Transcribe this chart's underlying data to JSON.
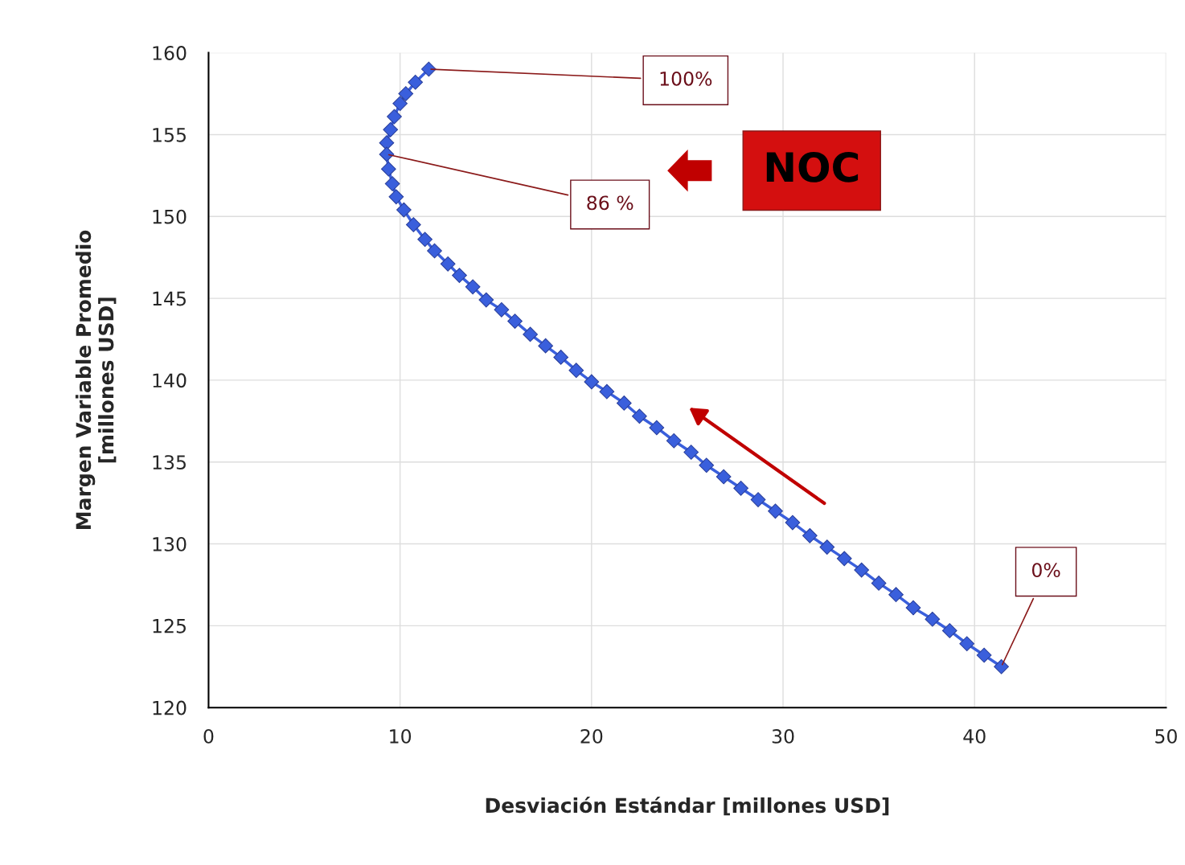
{
  "chart_data": {
    "type": "line",
    "xlabel": "Desviación Estándar [millones USD]",
    "ylabel": "Margen Variable Promedio\n[millones USD]",
    "x": [
      11.5,
      10.8,
      10.3,
      10.0,
      9.7,
      9.5,
      9.3,
      9.3,
      9.4,
      9.6,
      9.8,
      10.2,
      10.7,
      11.3,
      11.8,
      12.5,
      13.1,
      13.8,
      14.5,
      15.3,
      16.0,
      16.8,
      17.6,
      18.4,
      19.2,
      20.0,
      20.8,
      21.7,
      22.5,
      23.4,
      24.3,
      25.2,
      26.0,
      26.9,
      27.8,
      28.7,
      29.6,
      30.5,
      31.4,
      32.3,
      33.2,
      34.1,
      35.0,
      35.9,
      36.8,
      37.8,
      38.7,
      39.6,
      40.5,
      41.4
    ],
    "series": [
      {
        "color": "#3a5fdc",
        "values": [
          159.0,
          158.2,
          157.5,
          156.9,
          156.1,
          155.3,
          154.5,
          153.8,
          152.9,
          152.0,
          151.2,
          150.4,
          149.5,
          148.6,
          147.9,
          147.1,
          146.4,
          145.7,
          144.9,
          144.3,
          143.6,
          142.8,
          142.1,
          141.4,
          140.6,
          139.9,
          139.3,
          138.6,
          137.8,
          137.1,
          136.3,
          135.6,
          134.8,
          134.1,
          133.4,
          132.7,
          132.0,
          131.3,
          130.5,
          129.8,
          129.1,
          128.4,
          127.6,
          126.9,
          126.1,
          125.4,
          124.7,
          123.9,
          123.2,
          122.5
        ]
      }
    ],
    "xlim": [
      0,
      50
    ],
    "xticks": [
      0,
      10,
      20,
      30,
      40,
      50
    ],
    "ylim": [
      120,
      160
    ],
    "yticks": [
      120,
      125,
      130,
      135,
      140,
      145,
      150,
      155,
      160
    ],
    "grid": true,
    "marker": "diamond",
    "line_style": "solid",
    "legend": false,
    "annotations": [
      {
        "text": "100%",
        "x": 11.5,
        "y": 159.0
      },
      {
        "text": "86 %",
        "x": 9.3,
        "y": 153.8
      },
      {
        "text": "0%",
        "x": 41.4,
        "y": 122.5
      },
      "NOC"
    ]
  }
}
